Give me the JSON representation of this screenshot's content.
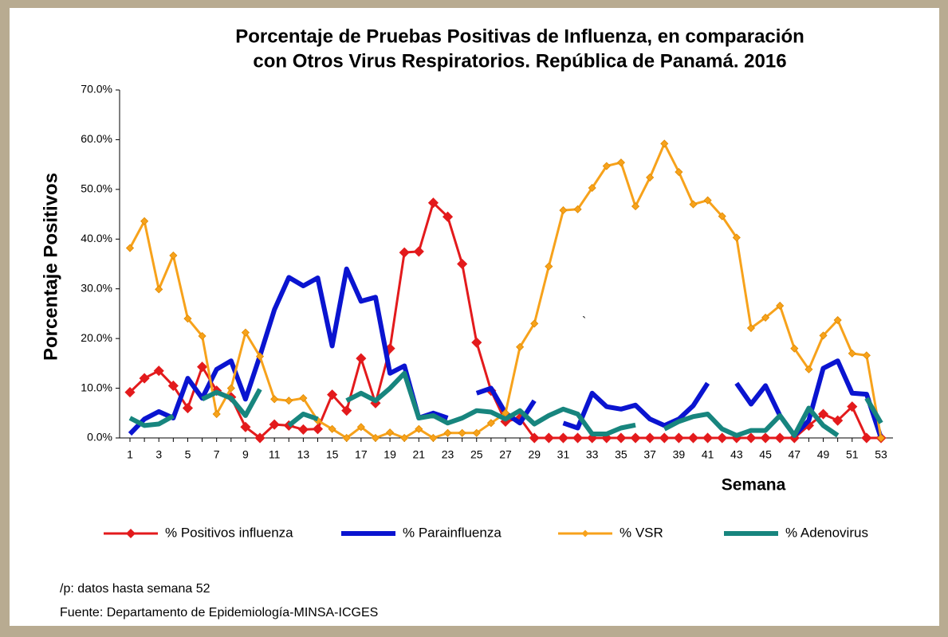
{
  "chart_data": {
    "type": "line",
    "title": [
      "Porcentaje de Pruebas Positivas de Influenza, en comparación",
      "con Otros Virus Respiratorios. República de Panamá. 2016"
    ],
    "y_label": "Porcentaje Positivos",
    "x_label": "Semana",
    "annotation": "`",
    "notes": [
      "/p: datos hasta semana 52",
      "Fuente: Departamento de Epidemiología-MINSA-ICGES"
    ],
    "categories": [
      1,
      null,
      3,
      null,
      5,
      null,
      7,
      null,
      9,
      null,
      11,
      null,
      13,
      null,
      15,
      null,
      17,
      null,
      19,
      null,
      21,
      null,
      23,
      null,
      25,
      null,
      27,
      null,
      29,
      null,
      31,
      null,
      33,
      null,
      35,
      null,
      37,
      null,
      39,
      null,
      41,
      null,
      43,
      null,
      45,
      null,
      47,
      null,
      49,
      null,
      51,
      null,
      53
    ],
    "ylim": [
      0,
      70
    ],
    "yticks": [
      {
        "value": 0,
        "label": "0.0%"
      },
      {
        "value": 10,
        "label": "10.0%"
      },
      {
        "value": 20,
        "label": "20.0%"
      },
      {
        "value": 30,
        "label": "30.0%"
      },
      {
        "value": 40,
        "label": "40.0%"
      },
      {
        "value": 50,
        "label": "50.0%"
      },
      {
        "value": 60,
        "label": "60.0%"
      },
      {
        "value": 70,
        "label": "70.0%"
      }
    ],
    "series": [
      {
        "name": "% Positivos influenza",
        "color": "#e31a1c",
        "marker": "diamond",
        "values": [
          9.2,
          12,
          13.5,
          10.5,
          6,
          14.3,
          9.5,
          8.2,
          2.2,
          0,
          2.7,
          2.5,
          1.7,
          1.8,
          8.7,
          5.5,
          16,
          7,
          18,
          37.3,
          37.5,
          47.3,
          44.5,
          35,
          19.2,
          9.5,
          3.3,
          4,
          0,
          0,
          0,
          0,
          0,
          0,
          0,
          0,
          0,
          0,
          0,
          0,
          0,
          0,
          0,
          0,
          0,
          0,
          0,
          2.5,
          4.8,
          3.5,
          6.3,
          0,
          0
        ]
      },
      {
        "name": "% Parainfluenza",
        "color": "#0a14d0",
        "marker": "none",
        "values": [
          0.8,
          3.8,
          5.3,
          4,
          12,
          8,
          13.8,
          15.5,
          7.8,
          16.5,
          25.8,
          32.3,
          30.6,
          32.2,
          18.5,
          34,
          27.5,
          28.3,
          13,
          14.5,
          4,
          5,
          4,
          null,
          9,
          10,
          5,
          3,
          7.5,
          null,
          3,
          2,
          9,
          6.3,
          5.8,
          6.6,
          3.8,
          2.5,
          3.8,
          6.5,
          11,
          null,
          11,
          6.8,
          10.5,
          4.5,
          0.5,
          3.5,
          14,
          15.5,
          9,
          8.8,
          0
        ]
      },
      {
        "name": "% VSR",
        "color": "#f7a21b",
        "marker": "diamond",
        "values": [
          38.2,
          43.6,
          29.9,
          36.7,
          24,
          20.5,
          4.8,
          10,
          21.2,
          16.4,
          7.8,
          7.5,
          8,
          3.5,
          1.8,
          0,
          2.2,
          0,
          1.1,
          0,
          1.8,
          0,
          1,
          1,
          1,
          3,
          5,
          18.3,
          23,
          34.5,
          45.8,
          46,
          50.3,
          54.7,
          55.4,
          46.6,
          52.4,
          59.2,
          53.5,
          47,
          47.8,
          44.6,
          40.3,
          22.1,
          24.2,
          26.6,
          18,
          13.8,
          20.6,
          23.7,
          17,
          16.6,
          0
        ]
      },
      {
        "name": "% Adenovirus",
        "color": "#17857e",
        "marker": "none",
        "values": [
          4,
          2.5,
          2.8,
          4.4,
          null,
          7.8,
          9.2,
          8,
          4.5,
          9.8,
          null,
          2.5,
          4.8,
          3.8,
          null,
          7.5,
          9,
          7.5,
          10,
          13,
          4,
          4.5,
          3,
          4,
          5.5,
          5.2,
          3.8,
          5.5,
          2.8,
          4.5,
          5.8,
          4.8,
          0.8,
          0.8,
          2,
          2.6,
          null,
          1.8,
          3.3,
          4.3,
          4.8,
          1.8,
          0.5,
          1.5,
          1.5,
          4.5,
          0.5,
          6,
          2.5,
          0.5,
          null,
          8,
          3
        ]
      }
    ]
  }
}
